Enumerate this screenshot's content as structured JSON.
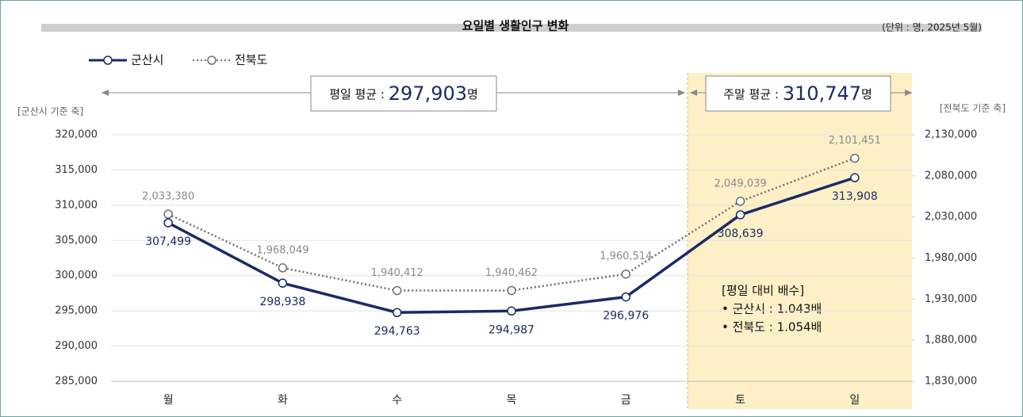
{
  "chart_data": {
    "type": "line",
    "title": "요일별 생활인구 변화",
    "subtitle": "(단위 : 명, 2025년 5월)",
    "y_axis_label": "[군산시 기준 축]",
    "y2_axis_label": "[전북도 기준 축]",
    "categories": [
      "월",
      "화",
      "수",
      "목",
      "금",
      "토",
      "일"
    ],
    "series": [
      {
        "name": "군산시",
        "color": "#1b2a66",
        "line_style": "solid",
        "axis": "y",
        "values": [
          307499,
          298938,
          294763,
          294987,
          296976,
          308639,
          313908
        ],
        "value_labels": [
          "307,499",
          "298,938",
          "294,763",
          "294,987",
          "296,976",
          "308,639",
          "313,908"
        ]
      },
      {
        "name": "전북도",
        "color": "#6f6f6f",
        "line_style": "dotted",
        "axis": "y2",
        "values": [
          2033380,
          1968049,
          1940412,
          1940462,
          1960514,
          2049039,
          2101451
        ],
        "value_labels": [
          "2,033,380",
          "1,968,049",
          "1,940,412",
          "1,940,462",
          "1,960,514",
          "2,049,039",
          "2,101,451"
        ]
      }
    ],
    "ylim": [
      285000,
      320000
    ],
    "yticks": [
      {
        "value": 285000,
        "label": "285,000"
      },
      {
        "value": 290000,
        "label": "290,000"
      },
      {
        "value": 295000,
        "label": "295,000"
      },
      {
        "value": 300000,
        "label": "300,000"
      },
      {
        "value": 305000,
        "label": "305,000"
      },
      {
        "value": 310000,
        "label": "310,000"
      },
      {
        "value": 315000,
        "label": "315,000"
      },
      {
        "value": 320000,
        "label": "320,000"
      }
    ],
    "y2lim": [
      1830000,
      2130000
    ],
    "y2ticks": [
      {
        "value": 1830000,
        "label": "1,830,000"
      },
      {
        "value": 1880000,
        "label": "1,880,000"
      },
      {
        "value": 1930000,
        "label": "1,930,000"
      },
      {
        "value": 1980000,
        "label": "1,980,000"
      },
      {
        "value": 2030000,
        "label": "2,030,000"
      },
      {
        "value": 2080000,
        "label": "2,080,000"
      },
      {
        "value": 2130000,
        "label": "2,130,000"
      }
    ],
    "grid": true,
    "legend": "top-left",
    "annotations": {
      "weekday": {
        "label": "평일 평균 : ",
        "value": "297,903",
        "unit": "명"
      },
      "weekend": {
        "label": "주말 평균 : ",
        "value": "310,747",
        "unit": "명"
      },
      "ratio": {
        "title": "[평일 대비 배수]",
        "items": [
          "•  군산시 : 1.043배",
          "•  전북도 : 1.054배"
        ]
      }
    }
  }
}
